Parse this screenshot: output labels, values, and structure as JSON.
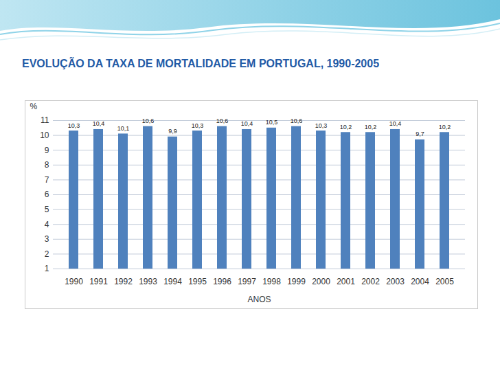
{
  "chart_data": {
    "type": "bar",
    "title": "EVOLUÇÃO DA TAXA DE MORTALIDADE EM PORTUGAL, 1990-2005",
    "x_label": "ANOS",
    "y_label": "%",
    "categories": [
      "1990",
      "1991",
      "1992",
      "1993",
      "1994",
      "1995",
      "1996",
      "1997",
      "1998",
      "1999",
      "2000",
      "2001",
      "2002",
      "2003",
      "2004",
      "2005"
    ],
    "values": [
      10.3,
      10.4,
      10.1,
      10.6,
      9.9,
      10.3,
      10.6,
      10.4,
      10.5,
      10.6,
      10.3,
      10.2,
      10.2,
      10.4,
      9.7,
      10.2
    ],
    "value_labels": [
      "10,3",
      "10,4",
      "10,1",
      "10,6",
      "9,9",
      "10,3",
      "10,6",
      "10,4",
      "10,5",
      "10,6",
      "10,3",
      "10,2",
      "10,2",
      "10,4",
      "9,7",
      "10,2"
    ],
    "color": "#4f81bd",
    "ylim": [
      1,
      11
    ],
    "yticks": [
      1,
      2,
      3,
      4,
      5,
      6,
      7,
      8,
      9,
      10,
      11
    ],
    "grid": true,
    "data_labels": true
  }
}
